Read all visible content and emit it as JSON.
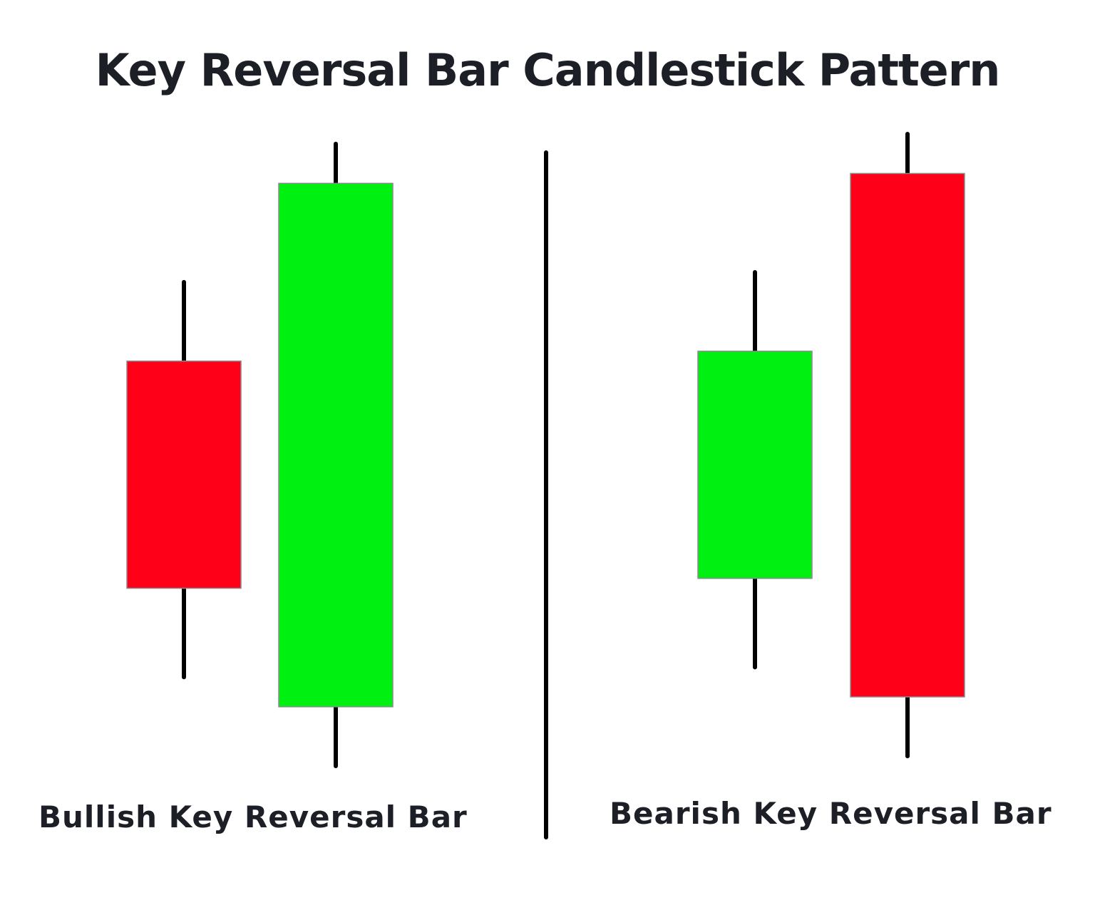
{
  "title": "Key Reversal Bar Candlestick Pattern",
  "colors": {
    "bullish": "#00f012",
    "bearish": "#ff0019",
    "wick": "#000000",
    "divider": "#000000",
    "text": "#1c1f26"
  },
  "patterns": [
    {
      "caption": "Bullish Key Reversal Bar",
      "candles": [
        {
          "direction": "bearish",
          "high": 8.6,
          "open": 7.8,
          "close": 5.5,
          "low": 4.6
        },
        {
          "direction": "bullish",
          "high": 10.0,
          "open": 4.3,
          "close": 9.6,
          "low": 3.7
        }
      ]
    },
    {
      "caption": "Bearish Key Reversal Bar",
      "candles": [
        {
          "direction": "bullish",
          "high": 8.7,
          "open": 5.6,
          "close": 7.9,
          "low": 4.7
        },
        {
          "direction": "bearish",
          "high": 10.1,
          "open": 9.7,
          "close": 4.4,
          "low": 3.8
        }
      ]
    }
  ]
}
